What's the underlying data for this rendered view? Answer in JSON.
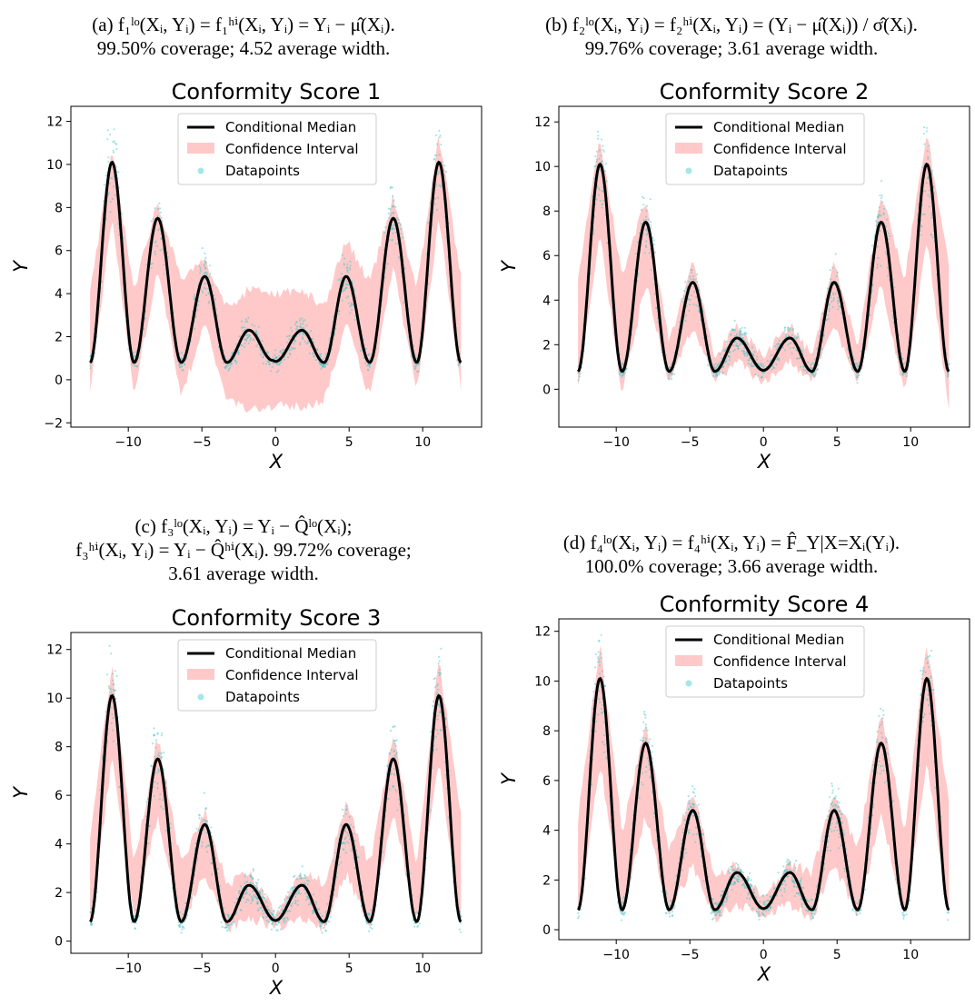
{
  "figure": {
    "panels": [
      {
        "caption": [
          "(a) f₁ˡᵒ(Xᵢ, Yᵢ) = f₁ʰⁱ(Xᵢ, Yᵢ) = Yᵢ − μ̂(Xᵢ).",
          "99.50% coverage; 4.52 average width."
        ],
        "pos": "top-left"
      },
      {
        "caption": [
          "(b) f₂ˡᵒ(Xᵢ, Yᵢ) = f₂ʰⁱ(Xᵢ, Yᵢ) = (Yᵢ − μ̂(Xᵢ)) / σ̂(Xᵢ).",
          "99.76% coverage; 3.61 average width."
        ],
        "pos": "top-right"
      },
      {
        "caption": [
          "(c) f₃ˡᵒ(Xᵢ, Yᵢ) = Yᵢ − Q̂ˡᵒ(Xᵢ);",
          "f₃ʰⁱ(Xᵢ, Yᵢ) = Yᵢ − Q̂ʰⁱ(Xᵢ). 99.72% coverage;",
          "3.61 average width."
        ],
        "pos": "bottom-left"
      },
      {
        "caption": [
          "(d) f₄ˡᵒ(Xᵢ, Yᵢ) = f₄ʰⁱ(Xᵢ, Yᵢ) = F̂_Y|X=Xᵢ(Yᵢ).",
          "100.0% coverage; 3.66 average width."
        ],
        "pos": "bottom-right"
      }
    ]
  },
  "colors": {
    "median": "#000000",
    "interval": "#ffc9c9",
    "points": "#3cc8c8"
  },
  "chart_data": [
    {
      "type": "line",
      "title": "Conformity Score 1",
      "xlabel": "X",
      "ylabel": "Y",
      "xlim": [
        -13.9,
        14.0
      ],
      "ylim": [
        -2.2,
        12.7
      ],
      "xticks": [
        -10,
        -5,
        0,
        5,
        10
      ],
      "yticks": [
        -2,
        0,
        2,
        4,
        6,
        8,
        10,
        12
      ],
      "legend": {
        "placement": "top-center",
        "entries": [
          "Conditional Median",
          "Confidence Interval",
          "Datapoints"
        ]
      },
      "series": [
        {
          "name": "Conditional Median",
          "x": [
            -12.6,
            -11.1,
            -9.6,
            -8.0,
            -6.4,
            -4.8,
            -3.3,
            -1.8,
            -0.2,
            0,
            1.8,
            3.3,
            4.8,
            6.4,
            8.0,
            9.6,
            11.1,
            12.6
          ],
          "y": [
            0.8,
            10.1,
            0.8,
            7.5,
            0.8,
            4.8,
            0.8,
            2.3,
            0.9,
            0.85,
            2.3,
            0.8,
            4.8,
            0.8,
            7.5,
            0.8,
            10.1,
            0.8
          ]
        },
        {
          "name": "Confidence Interval",
          "x": [
            -12.6,
            -11.1,
            -9.6,
            -8.0,
            -6.4,
            -4.8,
            -3.3,
            -1.8,
            0,
            1.8,
            3.3,
            4.8,
            6.4,
            8.0,
            9.6,
            11.1,
            12.6
          ],
          "lower": [
            -0.5,
            7.5,
            -0.6,
            5.2,
            -0.8,
            2.6,
            -0.9,
            -1.4,
            -1.2,
            -1.3,
            -0.9,
            2.6,
            -0.8,
            5.2,
            -0.6,
            7.5,
            -0.5
          ],
          "upper": [
            4.0,
            10.7,
            4.2,
            8.3,
            4.5,
            5.7,
            3.3,
            4.2,
            4.0,
            4.2,
            3.3,
            6.5,
            4.5,
            8.5,
            4.2,
            11.3,
            4.8
          ]
        }
      ]
    },
    {
      "type": "line",
      "title": "Conformity Score 2",
      "xlabel": "X",
      "ylabel": "Y",
      "xlim": [
        -13.9,
        14.0
      ],
      "ylim": [
        -1.7,
        12.7
      ],
      "xticks": [
        -10,
        -5,
        0,
        5,
        10
      ],
      "yticks": [
        0,
        2,
        4,
        6,
        8,
        10,
        12
      ],
      "legend": {
        "placement": "top-center",
        "entries": [
          "Conditional Median",
          "Confidence Interval",
          "Datapoints"
        ]
      },
      "series": [
        {
          "name": "Conditional Median",
          "x": [
            -12.6,
            -11.1,
            -9.6,
            -8.0,
            -6.4,
            -4.8,
            -3.3,
            -1.8,
            0,
            1.8,
            3.3,
            4.8,
            6.4,
            8.0,
            9.6,
            11.1,
            12.6
          ],
          "y": [
            0.8,
            10.1,
            0.8,
            7.5,
            0.8,
            4.8,
            0.8,
            2.3,
            0.85,
            2.3,
            0.8,
            4.8,
            0.8,
            7.5,
            0.8,
            10.1,
            0.8
          ]
        },
        {
          "name": "Confidence Interval",
          "x": [
            -12.6,
            -11.1,
            -9.6,
            -8.0,
            -6.4,
            -4.8,
            -3.3,
            -1.8,
            0,
            1.8,
            3.3,
            4.8,
            6.4,
            8.0,
            9.6,
            11.1,
            12.6
          ],
          "lower": [
            0.0,
            7.0,
            -0.3,
            4.8,
            0.2,
            2.8,
            0.4,
            1.2,
            0.3,
            1.2,
            0.4,
            2.8,
            0.2,
            4.8,
            -0.3,
            6.8,
            -1.0
          ],
          "upper": [
            5.0,
            11.3,
            5.0,
            8.5,
            2.0,
            5.8,
            1.5,
            2.8,
            1.5,
            2.9,
            1.5,
            5.8,
            2.0,
            8.8,
            5.0,
            11.5,
            5.5
          ]
        }
      ]
    },
    {
      "type": "line",
      "title": "Conformity Score 3",
      "xlabel": "X",
      "ylabel": "Y",
      "xlim": [
        -13.9,
        14.0
      ],
      "ylim": [
        -0.5,
        12.7
      ],
      "xticks": [
        -10,
        -5,
        0,
        5,
        10
      ],
      "yticks": [
        0,
        2,
        4,
        6,
        8,
        10,
        12
      ],
      "legend": {
        "placement": "top-center",
        "entries": [
          "Conditional Median",
          "Confidence Interval",
          "Datapoints"
        ]
      },
      "series": [
        {
          "name": "Conditional Median",
          "x": [
            -12.6,
            -11.1,
            -9.6,
            -8.0,
            -6.4,
            -4.8,
            -3.3,
            -1.8,
            0,
            1.8,
            3.3,
            4.8,
            6.4,
            8.0,
            9.6,
            11.1,
            12.6
          ],
          "y": [
            0.8,
            10.1,
            0.8,
            7.5,
            0.8,
            4.8,
            0.8,
            2.3,
            0.85,
            2.3,
            0.8,
            4.8,
            0.8,
            7.5,
            0.8,
            10.1,
            0.8
          ]
        },
        {
          "name": "Confidence Interval",
          "x": [
            -12.6,
            -11.1,
            -9.6,
            -8.0,
            -6.4,
            -4.8,
            -3.3,
            -1.8,
            0,
            1.8,
            3.3,
            4.8,
            6.4,
            8.0,
            9.6,
            11.1,
            12.6
          ],
          "lower": [
            0.7,
            7.5,
            0.8,
            5.2,
            0.6,
            2.8,
            0.5,
            1.0,
            0.6,
            1.0,
            0.5,
            2.8,
            0.6,
            5.2,
            0.8,
            7.5,
            0.5
          ],
          "upper": [
            4.3,
            11.4,
            3.2,
            8.4,
            3.1,
            5.4,
            2.4,
            2.8,
            1.2,
            2.8,
            2.4,
            5.6,
            3.1,
            8.6,
            3.2,
            11.6,
            5.1
          ]
        }
      ]
    },
    {
      "type": "line",
      "title": "Conformity Score 4",
      "xlabel": "X",
      "ylabel": "Y",
      "xlim": [
        -13.9,
        14.0
      ],
      "ylim": [
        -0.4,
        12.5
      ],
      "xticks": [
        -10,
        -5,
        0,
        5,
        10
      ],
      "yticks": [
        0,
        2,
        4,
        6,
        8,
        10,
        12
      ],
      "legend": {
        "placement": "top-center",
        "entries": [
          "Conditional Median",
          "Confidence Interval",
          "Datapoints"
        ]
      },
      "series": [
        {
          "name": "Conditional Median",
          "x": [
            -12.6,
            -11.1,
            -9.6,
            -8.0,
            -6.4,
            -4.8,
            -3.3,
            -1.8,
            0,
            1.8,
            3.3,
            4.8,
            6.4,
            8.0,
            9.6,
            11.1,
            12.6
          ],
          "y": [
            0.8,
            10.1,
            0.8,
            7.5,
            0.8,
            4.8,
            0.8,
            2.3,
            0.85,
            2.3,
            0.8,
            4.8,
            0.8,
            7.5,
            0.8,
            10.1,
            0.8
          ]
        },
        {
          "name": "Confidence Interval",
          "x": [
            -12.6,
            -11.1,
            -9.6,
            -8.0,
            -6.4,
            -4.8,
            -3.3,
            -1.8,
            0,
            1.8,
            3.3,
            4.8,
            6.4,
            8.0,
            9.6,
            11.1,
            12.6
          ],
          "lower": [
            0.5,
            6.8,
            0.6,
            4.6,
            0.6,
            2.6,
            0.5,
            1.0,
            0.6,
            1.0,
            0.5,
            2.6,
            0.6,
            4.6,
            0.6,
            6.8,
            0.5
          ],
          "upper": [
            4.4,
            11.4,
            4.0,
            8.2,
            3.2,
            5.4,
            2.3,
            2.6,
            1.3,
            2.6,
            2.3,
            5.6,
            3.2,
            8.7,
            4.0,
            11.6,
            5.0
          ]
        }
      ]
    }
  ]
}
